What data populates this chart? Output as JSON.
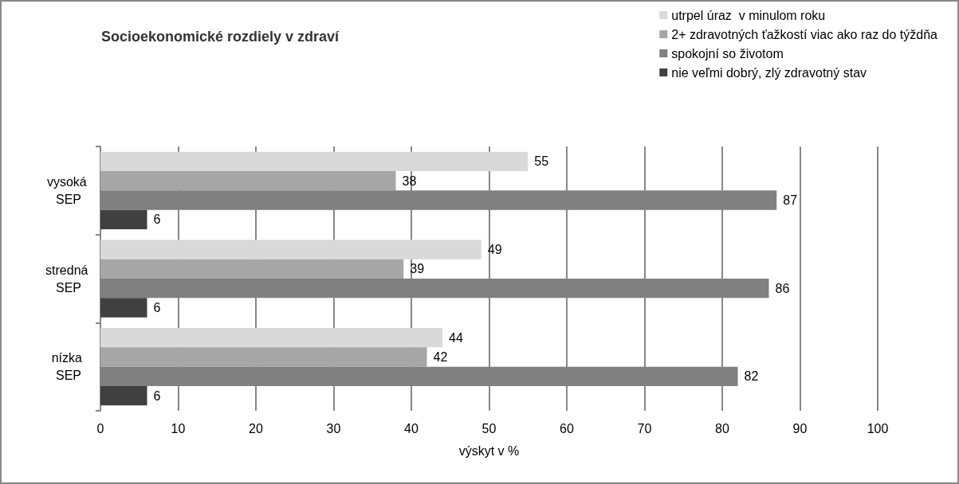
{
  "chart_data": {
    "type": "bar",
    "orientation": "horizontal",
    "title": "Socioekonomické rozdiely v zdraví",
    "xlabel": "výskyt v %",
    "categories": [
      "vysoká SEP",
      "stredná SEP",
      "nízka SEP"
    ],
    "series": [
      {
        "name": "utrpel úraz  v minulom roku",
        "color": "#d9d9d9",
        "values": [
          55,
          49,
          44
        ]
      },
      {
        "name": "2+ zdravotných ťažkostí viac ako raz do týždňa",
        "color": "#a6a6a6",
        "values": [
          38,
          39,
          42
        ]
      },
      {
        "name": "spokojní so životom",
        "color": "#808080",
        "values": [
          87,
          86,
          82
        ]
      },
      {
        "name": "nie veľmi dobrý, zlý zdravotný stav",
        "color": "#404040",
        "values": [
          6,
          6,
          6
        ]
      }
    ],
    "xlim": [
      0,
      100
    ],
    "xticks": [
      0,
      10,
      20,
      30,
      40,
      50,
      60,
      70,
      80,
      90,
      100
    ],
    "grid": "x",
    "legend": "top right",
    "data_labels": true
  }
}
